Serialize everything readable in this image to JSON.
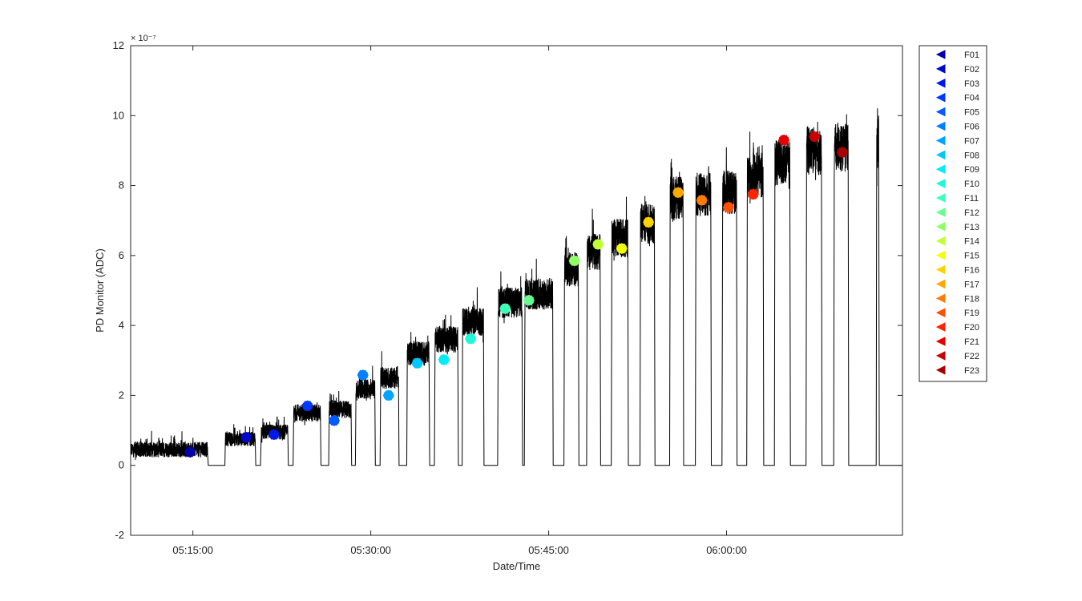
{
  "chart_data": {
    "type": "line",
    "title": "",
    "xlabel": "Date/Time",
    "ylabel": "PD Monitor (ADC)",
    "y_exponent_label": "× 10⁻⁷",
    "y_scale_exponent": -7,
    "x_ticks": [
      "05:15:00",
      "05:30:00",
      "05:45:00",
      "06:00:00"
    ],
    "y_ticks": [
      "-2",
      "0",
      "2",
      "4",
      "6",
      "8",
      "10",
      "12"
    ],
    "xlim": [
      "05:09:45",
      "06:14:50"
    ],
    "ylim": [
      -2,
      12
    ],
    "grid": false,
    "legend_position": "outside-right",
    "trace_color": "#000000",
    "plateaus": [
      {
        "start": "05:09:45",
        "end": "05:16:15",
        "level": 0.45
      },
      {
        "start": "05:17:45",
        "end": "05:20:15",
        "level": 0.75
      },
      {
        "start": "05:20:45",
        "end": "05:23:00",
        "level": 0.95
      },
      {
        "start": "05:23:30",
        "end": "05:25:45",
        "level": 1.5
      },
      {
        "start": "05:26:30",
        "end": "05:28:20",
        "level": 1.6
      },
      {
        "start": "05:28:45",
        "end": "05:30:20",
        "level": 2.2
      },
      {
        "start": "05:30:50",
        "end": "05:32:20",
        "level": 2.5
      },
      {
        "start": "05:33:05",
        "end": "05:34:55",
        "level": 3.2
      },
      {
        "start": "05:35:25",
        "end": "05:37:20",
        "level": 3.6
      },
      {
        "start": "05:37:45",
        "end": "05:39:30",
        "level": 4.1
      },
      {
        "start": "05:40:45",
        "end": "05:42:45",
        "level": 4.65
      },
      {
        "start": "05:43:00",
        "end": "05:45:20",
        "level": 4.9
      },
      {
        "start": "05:46:20",
        "end": "05:47:30",
        "level": 5.6
      },
      {
        "start": "05:48:15",
        "end": "05:49:20",
        "level": 6.1
      },
      {
        "start": "05:50:20",
        "end": "05:51:40",
        "level": 6.5
      },
      {
        "start": "05:52:45",
        "end": "05:53:55",
        "level": 6.9
      },
      {
        "start": "05:55:15",
        "end": "05:56:20",
        "level": 7.65
      },
      {
        "start": "05:57:25",
        "end": "05:58:40",
        "level": 7.75
      },
      {
        "start": "05:59:40",
        "end": "06:00:50",
        "level": 7.8
      },
      {
        "start": "06:01:45",
        "end": "06:03:05",
        "level": 8.3
      },
      {
        "start": "06:04:05",
        "end": "06:05:20",
        "level": 8.65
      },
      {
        "start": "06:06:45",
        "end": "06:08:00",
        "level": 9.0
      },
      {
        "start": "06:09:05",
        "end": "06:10:15",
        "level": 9.1
      },
      {
        "start": "06:12:40",
        "end": "06:12:50",
        "level": 9.2
      }
    ],
    "series": [
      {
        "name": "F01",
        "time": "05:14:45",
        "value": 0.38,
        "color": "#0000a8"
      },
      {
        "name": "F02",
        "time": "05:19:30",
        "value": 0.8,
        "color": "#0008c8"
      },
      {
        "name": "F03",
        "time": "05:21:50",
        "value": 0.88,
        "color": "#0018e8"
      },
      {
        "name": "F04",
        "time": "05:24:40",
        "value": 1.7,
        "color": "#0038ff"
      },
      {
        "name": "F05",
        "time": "05:26:55",
        "value": 1.28,
        "color": "#005cff"
      },
      {
        "name": "F06",
        "time": "05:29:20",
        "value": 2.58,
        "color": "#0080ff"
      },
      {
        "name": "F07",
        "time": "05:31:30",
        "value": 2.0,
        "color": "#00a4ff"
      },
      {
        "name": "F08",
        "time": "05:33:55",
        "value": 2.92,
        "color": "#00c8ff"
      },
      {
        "name": "F09",
        "time": "05:36:10",
        "value": 3.02,
        "color": "#00ecf8"
      },
      {
        "name": "F10",
        "time": "05:38:25",
        "value": 3.62,
        "color": "#1cf8d8"
      },
      {
        "name": "F11",
        "time": "05:41:20",
        "value": 4.48,
        "color": "#40ffb8"
      },
      {
        "name": "F12",
        "time": "05:43:20",
        "value": 4.72,
        "color": "#64ff90"
      },
      {
        "name": "F13",
        "time": "05:47:10",
        "value": 5.85,
        "color": "#90ff64"
      },
      {
        "name": "F14",
        "time": "05:49:10",
        "value": 6.32,
        "color": "#c0ff38"
      },
      {
        "name": "F15",
        "time": "05:51:10",
        "value": 6.2,
        "color": "#f0ff08"
      },
      {
        "name": "F16",
        "time": "05:53:25",
        "value": 6.95,
        "color": "#ffd400"
      },
      {
        "name": "F17",
        "time": "05:55:55",
        "value": 7.8,
        "color": "#ffa800"
      },
      {
        "name": "F18",
        "time": "05:57:55",
        "value": 7.58,
        "color": "#ff7c00"
      },
      {
        "name": "F19",
        "time": "06:00:10",
        "value": 7.38,
        "color": "#ff5000"
      },
      {
        "name": "F20",
        "time": "06:02:15",
        "value": 7.75,
        "color": "#ff2400"
      },
      {
        "name": "F21",
        "time": "06:04:50",
        "value": 9.3,
        "color": "#e80000"
      },
      {
        "name": "F22",
        "time": "06:07:25",
        "value": 9.4,
        "color": "#c80000"
      },
      {
        "name": "F23",
        "time": "06:09:45",
        "value": 8.95,
        "color": "#a80000"
      }
    ]
  }
}
